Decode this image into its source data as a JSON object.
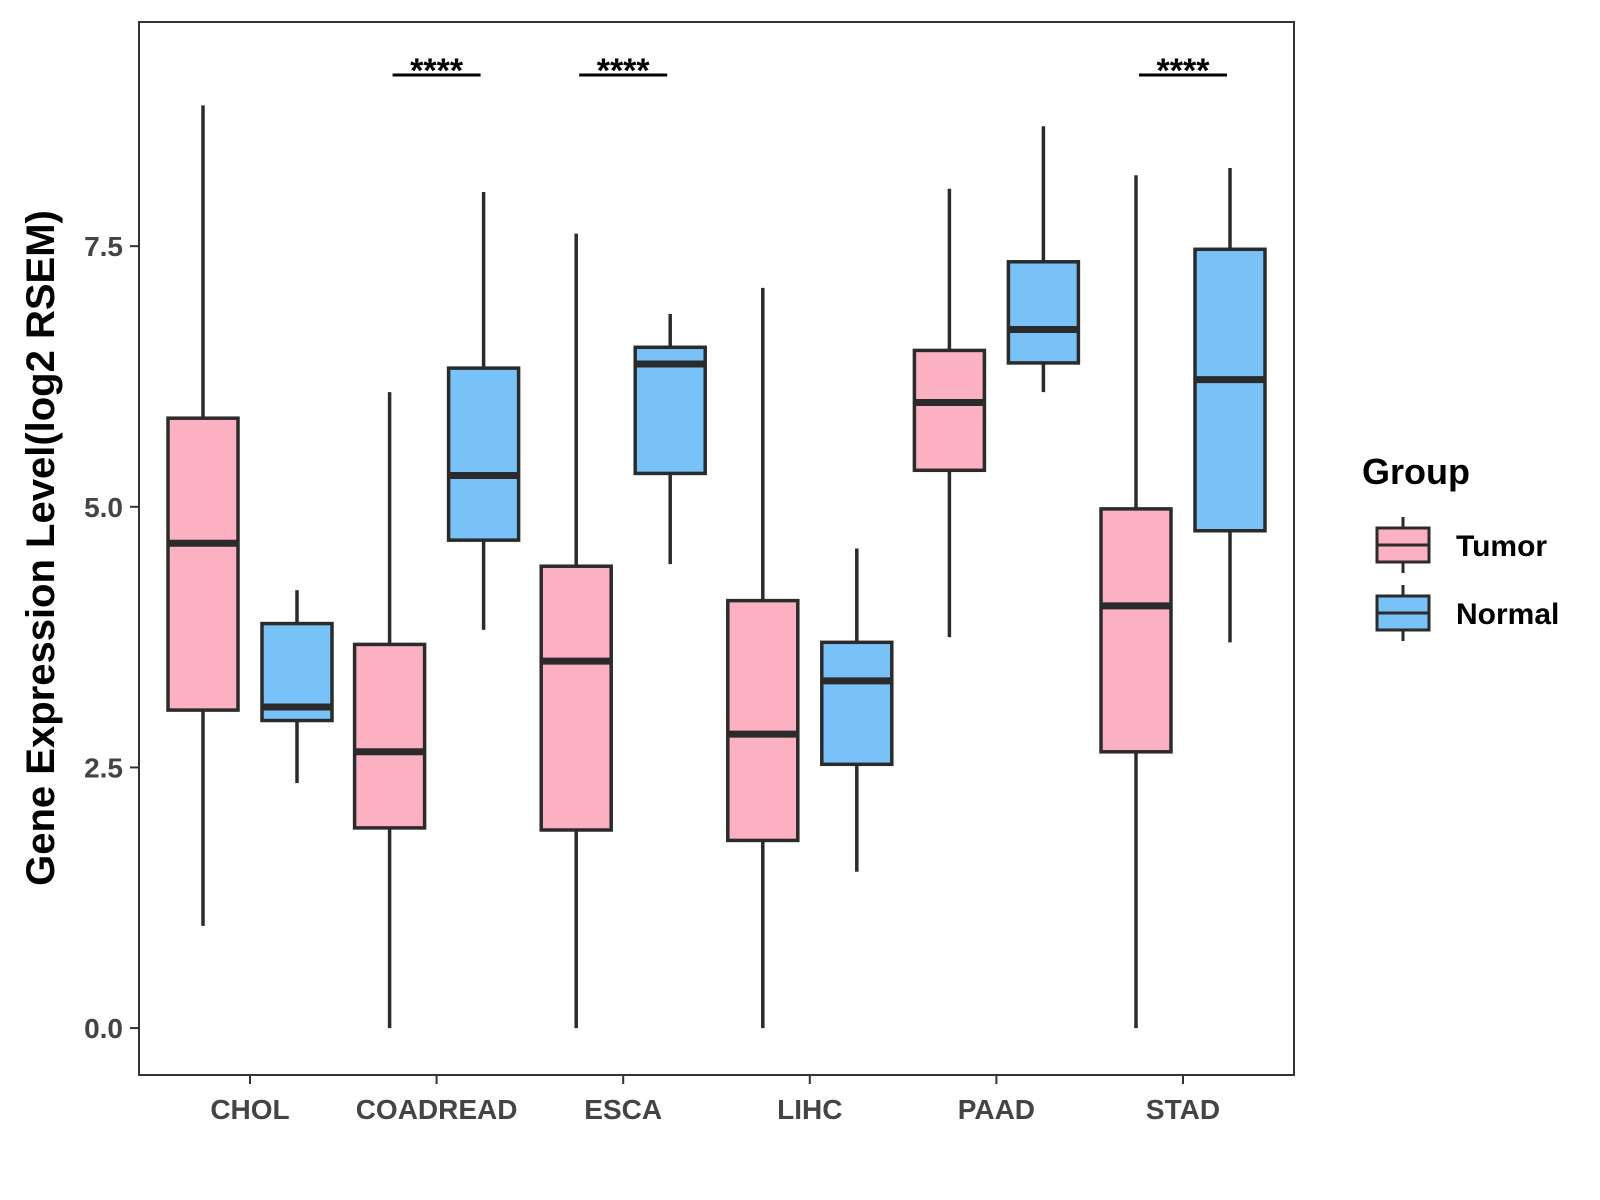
{
  "chart_data": {
    "type": "boxplot",
    "title": "",
    "xlabel": "",
    "ylabel": "Gene Expression Level(log2 RSEM)",
    "ylim": [
      -0.45,
      9.65
    ],
    "yticks": [
      {
        "value": 0.0,
        "label": "0.0"
      },
      {
        "value": 2.5,
        "label": "2.5"
      },
      {
        "value": 5.0,
        "label": "5.0"
      },
      {
        "value": 7.5,
        "label": "7.5"
      }
    ],
    "grid": false,
    "categories": [
      "CHOL",
      "COADREAD",
      "ESCA",
      "LIHC",
      "PAAD",
      "STAD"
    ],
    "legend": {
      "title": "Group",
      "position": "right",
      "entries": [
        {
          "name": "Tumor",
          "color": "#FBB1C2"
        },
        {
          "name": "Normal",
          "color": "#79C2F8"
        }
      ]
    },
    "series": [
      {
        "name": "Tumor",
        "color": "#FBB1C2",
        "boxes": [
          {
            "min": 0.98,
            "q1": 3.05,
            "median": 4.65,
            "q3": 5.85,
            "max": 8.85
          },
          {
            "min": 0.0,
            "q1": 1.92,
            "median": 2.65,
            "q3": 3.68,
            "max": 6.1
          },
          {
            "min": 0.0,
            "q1": 1.9,
            "median": 3.52,
            "q3": 4.43,
            "max": 7.62
          },
          {
            "min": 0.0,
            "q1": 1.8,
            "median": 2.82,
            "q3": 4.1,
            "max": 7.1
          },
          {
            "min": 3.75,
            "q1": 5.35,
            "median": 6.0,
            "q3": 6.5,
            "max": 8.05
          },
          {
            "min": 0.0,
            "q1": 2.65,
            "median": 4.05,
            "q3": 4.98,
            "max": 8.18
          }
        ]
      },
      {
        "name": "Normal",
        "color": "#79C2F8",
        "boxes": [
          {
            "min": 2.35,
            "q1": 2.95,
            "median": 3.08,
            "q3": 3.88,
            "max": 4.2
          },
          {
            "min": 3.82,
            "q1": 4.68,
            "median": 5.3,
            "q3": 6.33,
            "max": 8.02
          },
          {
            "min": 4.45,
            "q1": 5.32,
            "median": 6.37,
            "q3": 6.53,
            "max": 6.85
          },
          {
            "min": 1.5,
            "q1": 2.53,
            "median": 3.33,
            "q3": 3.7,
            "max": 4.6
          },
          {
            "min": 6.1,
            "q1": 6.38,
            "median": 6.7,
            "q3": 7.35,
            "max": 8.65
          },
          {
            "min": 3.7,
            "q1": 4.77,
            "median": 6.22,
            "q3": 7.47,
            "max": 8.25
          }
        ]
      }
    ],
    "significance": [
      {
        "category": "COADREAD",
        "label": "****"
      },
      {
        "category": "ESCA",
        "label": "****"
      },
      {
        "category": "STAD",
        "label": "****"
      }
    ]
  }
}
